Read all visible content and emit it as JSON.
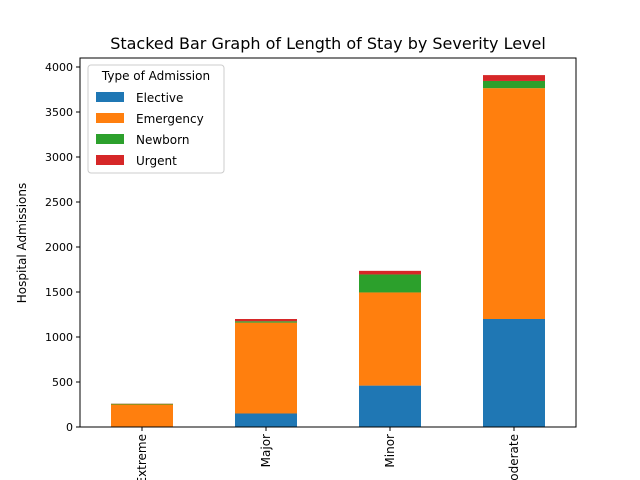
{
  "chart_data": {
    "type": "bar",
    "stacked": true,
    "title": "Stacked Bar Graph of Length of Stay by Severity Level",
    "xlabel": "",
    "ylabel": "Hospital Admissions",
    "ylim": [
      0,
      4100
    ],
    "yticks": [
      0,
      500,
      1000,
      1500,
      2000,
      2500,
      3000,
      3500,
      4000
    ],
    "categories": [
      "Extreme",
      "Major",
      "Minor",
      "Moderate"
    ],
    "series": [
      {
        "name": "Elective",
        "color": "#1f77b4",
        "values": [
          2,
          150,
          460,
          1200
        ]
      },
      {
        "name": "Emergency",
        "color": "#ff7f0e",
        "values": [
          248,
          1010,
          1035,
          2565
        ]
      },
      {
        "name": "Newborn",
        "color": "#2ca02c",
        "values": [
          8,
          15,
          200,
          80
        ]
      },
      {
        "name": "Urgent",
        "color": "#d62728",
        "values": [
          2,
          25,
          40,
          65
        ]
      }
    ],
    "legend": {
      "title": "Type of Admission",
      "placement": "top-left"
    },
    "grid": false
  }
}
